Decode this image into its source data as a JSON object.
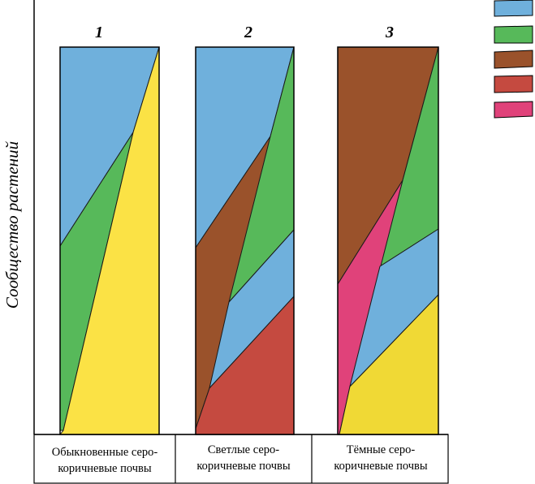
{
  "y_axis_label": "Сообщество растений",
  "column_numbers": [
    "1",
    "2",
    "3"
  ],
  "soil_captions": [
    {
      "line1": "Обыкновенные серо-",
      "line2": "коричневые почвы"
    },
    {
      "line1": "Светлые серо-",
      "line2": "коричневые почвы"
    },
    {
      "line1": "Тёмные серо-",
      "line2": "коричневые почвы"
    }
  ],
  "colors": {
    "blue": "#6fb0dc",
    "green": "#57b95a",
    "brown": "#9a522b",
    "red": "#c54a40",
    "pink": "#e0427a",
    "yellow": "#fbe245",
    "yellow_dark": "#f0d935"
  },
  "legend_swatches": [
    "blue",
    "green",
    "brown",
    "red",
    "pink"
  ]
}
